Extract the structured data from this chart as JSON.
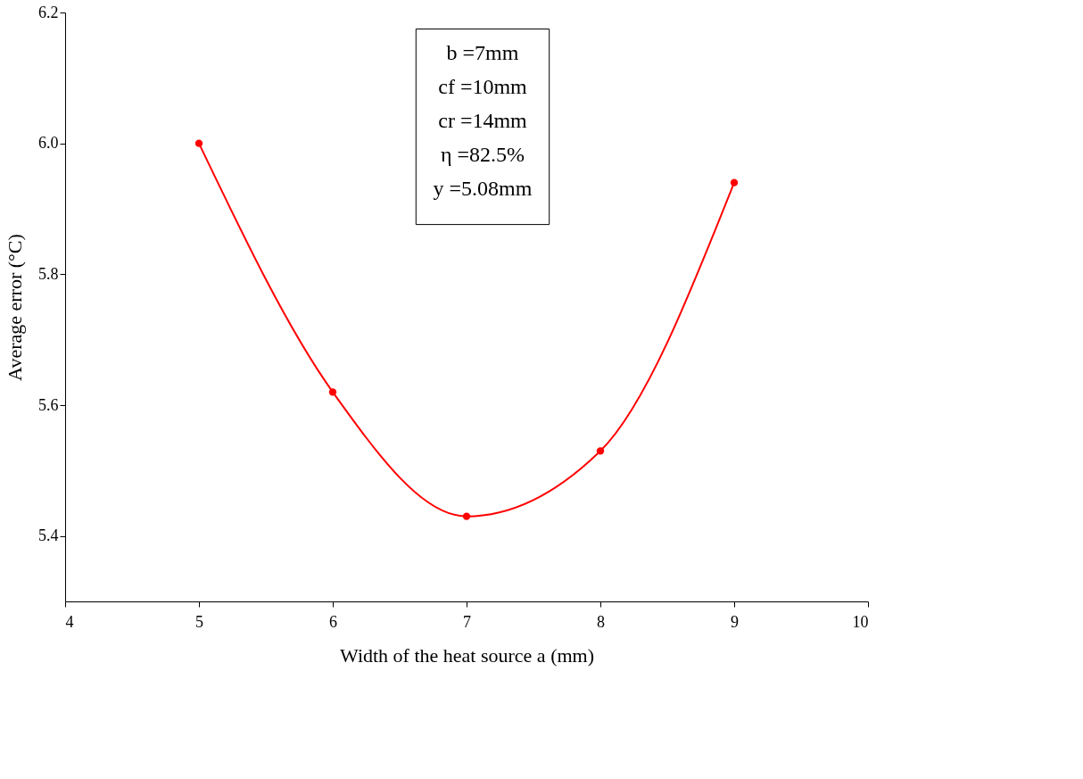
{
  "chart_data": {
    "type": "line",
    "xlabel": "Width of the heat source a (mm)",
    "ylabel": "Average error (°C)",
    "x": [
      5,
      6,
      7,
      8,
      9
    ],
    "series": [
      {
        "color": "#ff0000",
        "values": [
          6.0,
          5.62,
          5.43,
          5.53,
          5.94
        ]
      }
    ],
    "xlim": [
      4,
      10
    ],
    "xticks": [
      4,
      5,
      6,
      7,
      8,
      9,
      10
    ],
    "ylim": [
      5.3,
      6.2
    ],
    "yticks": [
      5.4,
      5.6,
      5.8,
      {
        "value": 6,
        "label": "6.0"
      },
      6.2
    ],
    "marker": "circle",
    "line_style": "solid",
    "grid": false,
    "annotations": [
      "b =7mm",
      "cf =10mm",
      "cr =14mm",
      "η =82.5%",
      "y =5.08mm"
    ]
  }
}
